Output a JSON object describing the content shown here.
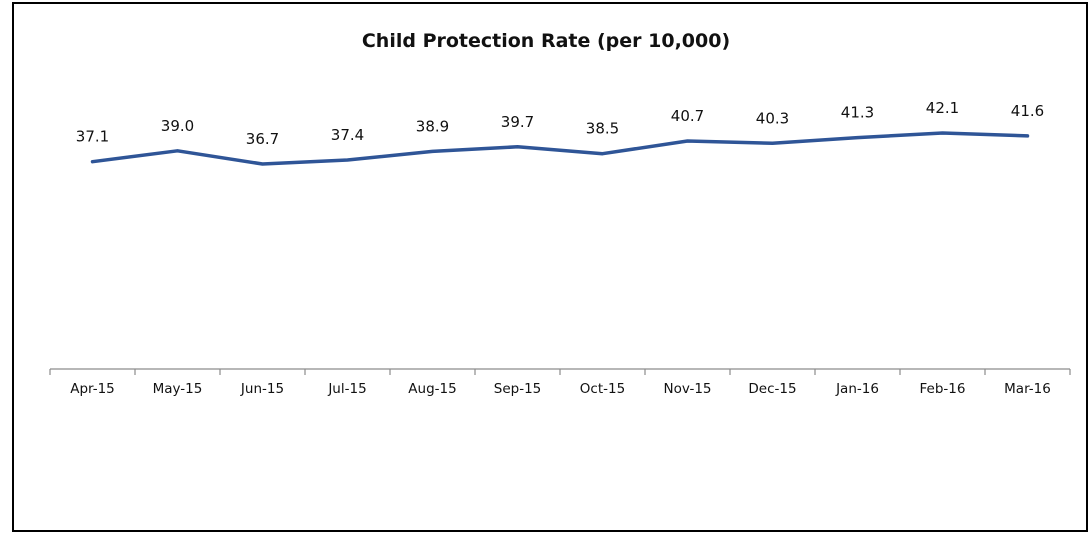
{
  "chart_data": {
    "type": "line",
    "title": "Child Protection Rate (per 10,000)",
    "xlabel": "",
    "ylabel": "",
    "categories": [
      "Apr-15",
      "May-15",
      "Jun-15",
      "Jul-15",
      "Aug-15",
      "Sep-15",
      "Oct-15",
      "Nov-15",
      "Dec-15",
      "Jan-16",
      "Feb-16",
      "Mar-16"
    ],
    "series": [
      {
        "values": [
          37.1,
          39.0,
          36.7,
          37.4,
          38.9,
          39.7,
          38.5,
          40.7,
          40.3,
          41.3,
          42.1,
          41.6
        ]
      }
    ],
    "data_labels": [
      "37.1",
      "39.0",
      "36.7",
      "37.4",
      "38.9",
      "39.7",
      "38.5",
      "40.7",
      "40.3",
      "41.3",
      "42.1",
      "41.6"
    ],
    "grid": false,
    "legend": "none",
    "color": "#2f5597"
  }
}
